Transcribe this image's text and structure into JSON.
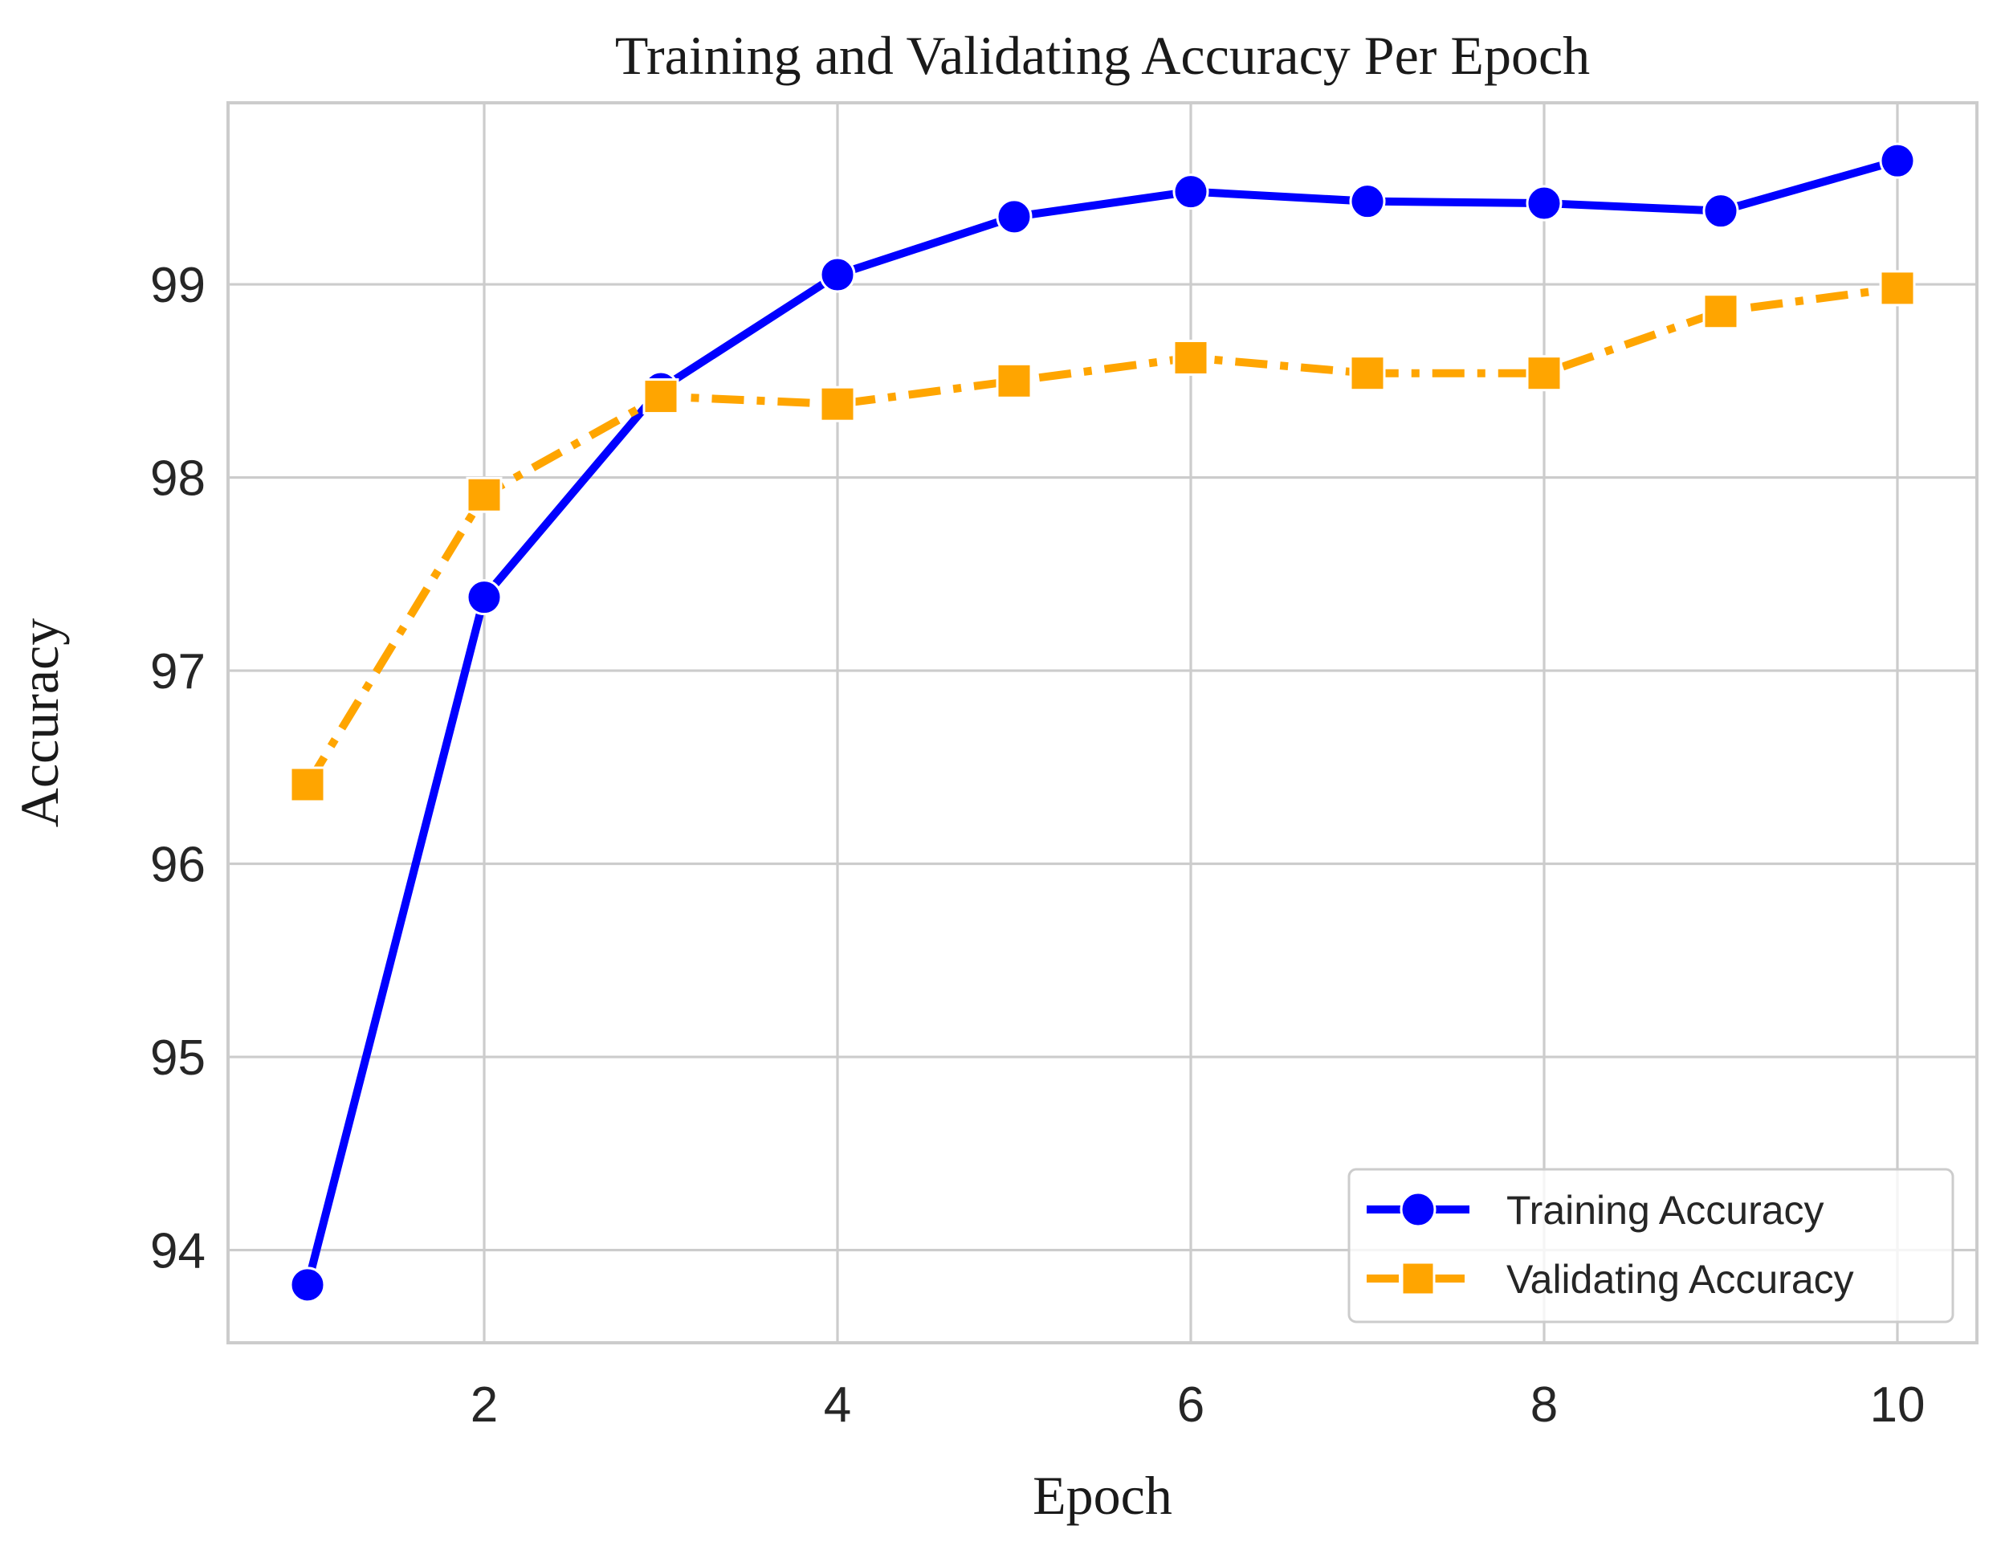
{
  "chart_data": {
    "type": "line",
    "title": "Training and Validating Accuracy Per Epoch",
    "xlabel": "Epoch",
    "ylabel": "Accuracy",
    "xlim": [
      0.55,
      10.45
    ],
    "ylim": [
      93.52,
      99.94
    ],
    "xticks": [
      2,
      4,
      6,
      8,
      10
    ],
    "yticks": [
      94,
      95,
      96,
      97,
      98,
      99
    ],
    "grid": true,
    "legend_position": "lower-right",
    "x": [
      1,
      2,
      3,
      4,
      5,
      6,
      7,
      8,
      9,
      10
    ],
    "series": [
      {
        "name": "Training Accuracy",
        "color": "#0000ff",
        "marker": "circle",
        "linestyle": "solid",
        "values": [
          93.82,
          97.38,
          98.46,
          99.05,
          99.35,
          99.48,
          99.43,
          99.42,
          99.38,
          99.64
        ]
      },
      {
        "name": "Validating Accuracy",
        "color": "#ffa500",
        "marker": "square",
        "linestyle": "dashdot",
        "values": [
          96.41,
          97.91,
          98.42,
          98.38,
          98.5,
          98.62,
          98.54,
          98.54,
          98.86,
          98.98
        ]
      }
    ]
  }
}
